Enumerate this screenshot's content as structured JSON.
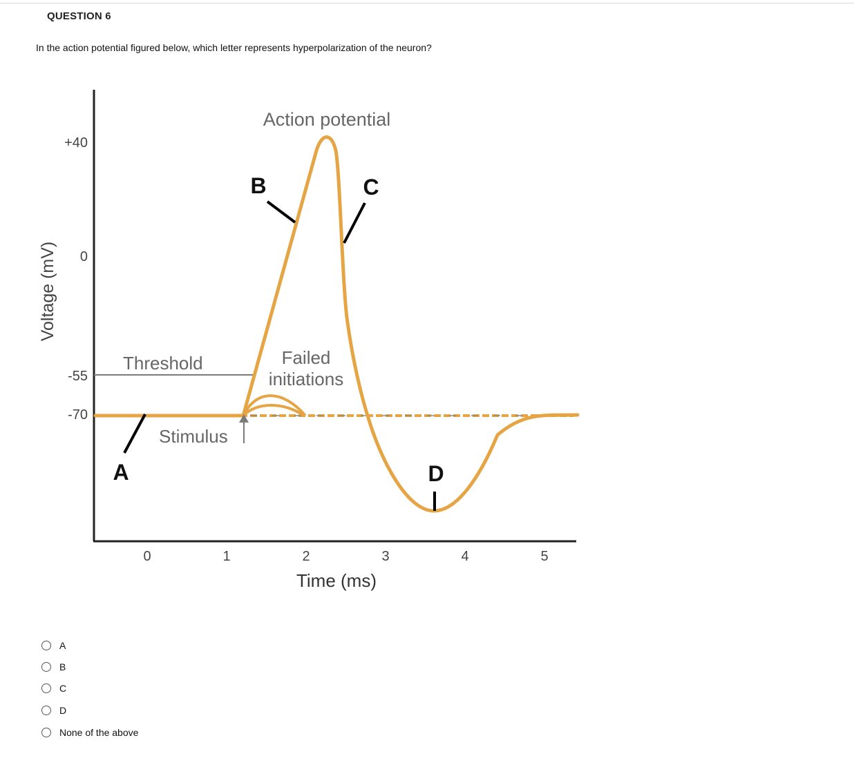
{
  "question": {
    "title": "QUESTION 6",
    "text": "In the action potential figured below, which letter represents hyperpolarization of the neuron?"
  },
  "figure": {
    "title": "Action potential",
    "ylabel": "Voltage (mV)",
    "xlabel": "Time (ms)",
    "y_ticks": [
      "+40",
      "0",
      "-55",
      "-70"
    ],
    "x_ticks": [
      "0",
      "1",
      "2",
      "3",
      "4",
      "5"
    ],
    "labels": {
      "threshold": "Threshold",
      "stimulus": "Stimulus",
      "failed_line1": "Failed",
      "failed_line2": "initiations",
      "a": "A",
      "b": "B",
      "c": "C",
      "d": "D"
    },
    "colors": {
      "curve": "#E5A545",
      "axis": "#222222",
      "threshold_line": "#7a7a7a",
      "text": "#555555"
    }
  },
  "options": [
    {
      "label": "A"
    },
    {
      "label": "B"
    },
    {
      "label": "C"
    },
    {
      "label": "D"
    },
    {
      "label": "None of the above"
    }
  ]
}
